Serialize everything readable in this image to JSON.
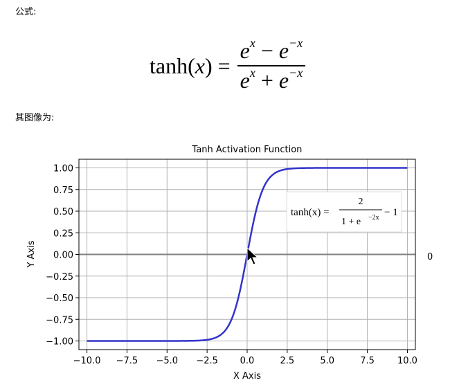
{
  "doc": {
    "label_formula": "公式:",
    "label_graph": "其图像为:",
    "formula": {
      "lhs_fn": "tanh(",
      "lhs_var": "x",
      "lhs_end": ") =",
      "num_base1": "e",
      "num_exp1": "x",
      "num_op": " − ",
      "num_base2": "e",
      "num_exp2": "−x",
      "den_base1": "e",
      "den_exp1": "x",
      "den_op": " + ",
      "den_base2": "e",
      "den_exp2": "−x"
    }
  },
  "chart_data": {
    "type": "line",
    "title": "Tanh Activation Function",
    "xlabel": "X Axis",
    "ylabel": "Y Axis",
    "xlim": [
      -10.5,
      10.5
    ],
    "ylim": [
      -1.1,
      1.1
    ],
    "xticks": [
      -10.0,
      -7.5,
      -5.0,
      -2.5,
      0.0,
      2.5,
      5.0,
      7.5,
      10.0
    ],
    "xtick_labels": [
      "−10.0",
      "−7.5",
      "−5.0",
      "−2.5",
      "0.0",
      "2.5",
      "5.0",
      "7.5",
      "10.0"
    ],
    "yticks": [
      1.0,
      0.75,
      0.5,
      0.25,
      0.0,
      -0.25,
      -0.5,
      -0.75,
      -1.0
    ],
    "ytick_labels": [
      "1.00",
      "0.75",
      "0.50",
      "0.25",
      "0.00",
      "−0.25",
      "−0.50",
      "−0.75",
      "−1.00"
    ],
    "grid": true,
    "series": [
      {
        "function": "tanh",
        "x": [
          -10,
          -8,
          -6,
          -4,
          -3,
          -2,
          -1.5,
          -1,
          -0.5,
          0,
          0.5,
          1,
          1.5,
          2,
          3,
          4,
          6,
          8,
          10
        ],
        "y": [
          -1.0,
          -1.0,
          -1.0,
          -0.999,
          -0.995,
          -0.964,
          -0.905,
          -0.762,
          -0.462,
          0.0,
          0.462,
          0.762,
          0.905,
          0.964,
          0.995,
          0.999,
          1.0,
          1.0,
          1.0
        ]
      }
    ],
    "line_color": "#3333cc",
    "hline_y": 0,
    "hline_label": "0",
    "annotation": {
      "lhs": "tanh(x) =",
      "num": "2",
      "den_base": "1 + e",
      "den_exp": "−2x",
      "tail": "− 1"
    }
  }
}
